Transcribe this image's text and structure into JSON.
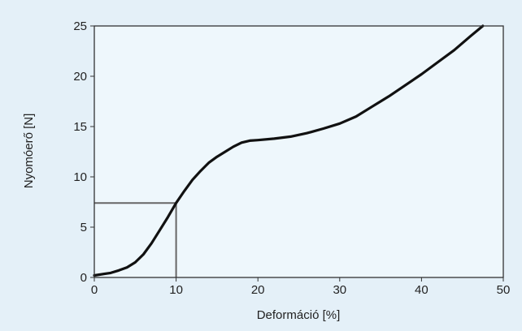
{
  "colors": {
    "page_background": "#e4f0f8",
    "plot_background": "#eef7fc",
    "curve": "#111111",
    "guide_lines": "#666666",
    "axis": "#333333"
  },
  "chart_data": {
    "type": "line",
    "xlabel": "Deformáció [%]",
    "ylabel": "Nyomóerő [N]",
    "xlim": [
      0,
      50
    ],
    "ylim": [
      0,
      25
    ],
    "x_ticks": [
      0,
      10,
      20,
      30,
      40,
      50
    ],
    "y_ticks": [
      0,
      5,
      10,
      15,
      20,
      25
    ],
    "grid": false,
    "series": [
      {
        "x": [
          0,
          2,
          3,
          4,
          5,
          6,
          7,
          8,
          9,
          10,
          11,
          12,
          13,
          14,
          15,
          16,
          17,
          18,
          19,
          20,
          22,
          24,
          26,
          28,
          30,
          32,
          34,
          36,
          38,
          40,
          42,
          44,
          46,
          47.5
        ],
        "y": [
          0.2,
          0.45,
          0.7,
          1.0,
          1.5,
          2.3,
          3.4,
          4.7,
          6.0,
          7.4,
          8.6,
          9.7,
          10.6,
          11.4,
          12.0,
          12.5,
          13.0,
          13.4,
          13.6,
          13.65,
          13.8,
          14.0,
          14.35,
          14.8,
          15.3,
          16.0,
          17.0,
          18.0,
          19.1,
          20.2,
          21.4,
          22.6,
          24.0,
          25.0
        ]
      }
    ],
    "reference_point": {
      "x": 10,
      "y": 7.4
    }
  }
}
